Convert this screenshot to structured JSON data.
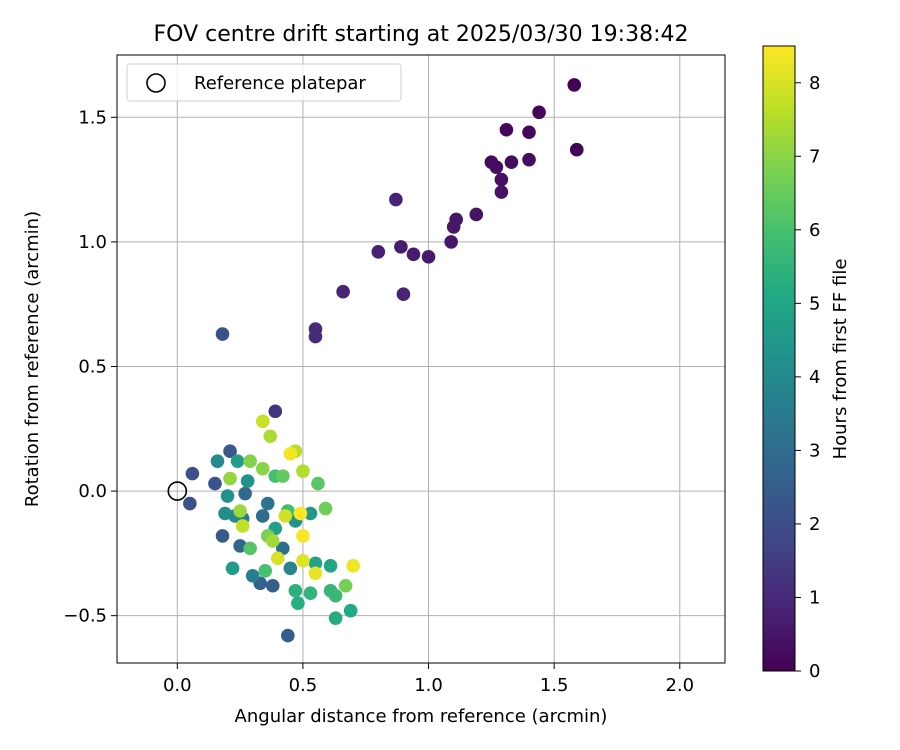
{
  "chart_data": {
    "type": "scatter",
    "title": "FOV centre drift starting at 2025/03/30 19:38:42",
    "xlabel": "Angular distance from reference (arcmin)",
    "ylabel": "Rotation from reference (arcmin)",
    "xlim": [
      -0.24,
      2.18
    ],
    "ylim": [
      -0.69,
      1.75
    ],
    "xticks": [
      0.0,
      0.5,
      1.0,
      1.5,
      2.0
    ],
    "xtick_labels": [
      "0.0",
      "0.5",
      "1.0",
      "1.5",
      "2.0"
    ],
    "yticks": [
      -0.5,
      0.0,
      0.5,
      1.0,
      1.5
    ],
    "ytick_labels": [
      "−0.5",
      "0.0",
      "0.5",
      "1.0",
      "1.5"
    ],
    "grid": true,
    "legend": {
      "position": "top-left",
      "entries": [
        "Reference platepar"
      ]
    },
    "reference_point": {
      "x": 0.0,
      "y": 0.0,
      "label": "Reference platepar"
    },
    "colorbar": {
      "label": "Hours from first FF file",
      "colormap": "viridis",
      "range": [
        0,
        8.5
      ],
      "ticks": [
        0,
        1,
        2,
        3,
        4,
        5,
        6,
        7,
        8
      ],
      "tick_labels": [
        "0",
        "1",
        "2",
        "3",
        "4",
        "5",
        "6",
        "7",
        "8"
      ]
    },
    "points": [
      {
        "x": 1.58,
        "y": 1.63,
        "hours": 0.05
      },
      {
        "x": 1.44,
        "y": 1.52,
        "hours": 0.1
      },
      {
        "x": 1.59,
        "y": 1.37,
        "hours": 0.1
      },
      {
        "x": 1.31,
        "y": 1.45,
        "hours": 0.15
      },
      {
        "x": 1.4,
        "y": 1.44,
        "hours": 0.2
      },
      {
        "x": 1.25,
        "y": 1.32,
        "hours": 0.25
      },
      {
        "x": 1.27,
        "y": 1.3,
        "hours": 0.25
      },
      {
        "x": 1.33,
        "y": 1.32,
        "hours": 0.3
      },
      {
        "x": 1.4,
        "y": 1.33,
        "hours": 0.3
      },
      {
        "x": 1.29,
        "y": 1.25,
        "hours": 0.35
      },
      {
        "x": 1.29,
        "y": 1.2,
        "hours": 0.4
      },
      {
        "x": 1.19,
        "y": 1.11,
        "hours": 0.45
      },
      {
        "x": 1.11,
        "y": 1.09,
        "hours": 0.5
      },
      {
        "x": 1.1,
        "y": 1.06,
        "hours": 0.5
      },
      {
        "x": 1.09,
        "y": 1.0,
        "hours": 0.55
      },
      {
        "x": 1.0,
        "y": 0.94,
        "hours": 0.6
      },
      {
        "x": 0.94,
        "y": 0.95,
        "hours": 0.65
      },
      {
        "x": 0.89,
        "y": 0.98,
        "hours": 0.7
      },
      {
        "x": 0.8,
        "y": 0.96,
        "hours": 0.75
      },
      {
        "x": 0.87,
        "y": 1.17,
        "hours": 0.8
      },
      {
        "x": 0.9,
        "y": 0.79,
        "hours": 0.85
      },
      {
        "x": 0.66,
        "y": 0.8,
        "hours": 0.9
      },
      {
        "x": 0.55,
        "y": 0.65,
        "hours": 1.0
      },
      {
        "x": 0.55,
        "y": 0.62,
        "hours": 1.05
      },
      {
        "x": 0.39,
        "y": 0.32,
        "hours": 1.3
      },
      {
        "x": 0.18,
        "y": 0.63,
        "hours": 2.1
      },
      {
        "x": 0.06,
        "y": 0.07,
        "hours": 2.0
      },
      {
        "x": 0.05,
        "y": -0.05,
        "hours": 2.1
      },
      {
        "x": 0.15,
        "y": 0.03,
        "hours": 2.2
      },
      {
        "x": 0.21,
        "y": 0.16,
        "hours": 2.3
      },
      {
        "x": 0.18,
        "y": -0.18,
        "hours": 2.4
      },
      {
        "x": 0.44,
        "y": -0.58,
        "hours": 2.5
      },
      {
        "x": 0.38,
        "y": -0.38,
        "hours": 2.6
      },
      {
        "x": 0.33,
        "y": -0.37,
        "hours": 2.7
      },
      {
        "x": 0.25,
        "y": -0.22,
        "hours": 2.8
      },
      {
        "x": 0.27,
        "y": -0.01,
        "hours": 2.9
      },
      {
        "x": 0.34,
        "y": -0.1,
        "hours": 3.0
      },
      {
        "x": 0.42,
        "y": -0.23,
        "hours": 3.1
      },
      {
        "x": 0.36,
        "y": -0.05,
        "hours": 3.2
      },
      {
        "x": 0.26,
        "y": -0.11,
        "hours": 3.4
      },
      {
        "x": 0.3,
        "y": -0.34,
        "hours": 3.6
      },
      {
        "x": 0.45,
        "y": -0.31,
        "hours": 3.8
      },
      {
        "x": 0.23,
        "y": -0.1,
        "hours": 3.9
      },
      {
        "x": 0.16,
        "y": 0.12,
        "hours": 4.0
      },
      {
        "x": 0.19,
        "y": -0.09,
        "hours": 4.1
      },
      {
        "x": 0.2,
        "y": -0.02,
        "hours": 4.2
      },
      {
        "x": 0.28,
        "y": 0.04,
        "hours": 4.3
      },
      {
        "x": 0.47,
        "y": -0.12,
        "hours": 4.4
      },
      {
        "x": 0.53,
        "y": -0.09,
        "hours": 4.5
      },
      {
        "x": 0.22,
        "y": -0.31,
        "hours": 4.6
      },
      {
        "x": 0.24,
        "y": 0.12,
        "hours": 4.7
      },
      {
        "x": 0.39,
        "y": -0.15,
        "hours": 4.8
      },
      {
        "x": 0.55,
        "y": -0.29,
        "hours": 4.9
      },
      {
        "x": 0.61,
        "y": -0.3,
        "hours": 5.0
      },
      {
        "x": 0.69,
        "y": -0.48,
        "hours": 5.1
      },
      {
        "x": 0.63,
        "y": -0.51,
        "hours": 5.2
      },
      {
        "x": 0.48,
        "y": -0.45,
        "hours": 5.3
      },
      {
        "x": 0.47,
        "y": -0.4,
        "hours": 5.4
      },
      {
        "x": 0.53,
        "y": -0.41,
        "hours": 5.5
      },
      {
        "x": 0.61,
        "y": -0.4,
        "hours": 5.6
      },
      {
        "x": 0.63,
        "y": -0.42,
        "hours": 5.7
      },
      {
        "x": 0.44,
        "y": -0.08,
        "hours": 5.8
      },
      {
        "x": 0.39,
        "y": 0.06,
        "hours": 5.9
      },
      {
        "x": 0.35,
        "y": -0.32,
        "hours": 6.0
      },
      {
        "x": 0.29,
        "y": -0.23,
        "hours": 6.2
      },
      {
        "x": 0.56,
        "y": 0.03,
        "hours": 6.3
      },
      {
        "x": 0.42,
        "y": 0.06,
        "hours": 6.4
      },
      {
        "x": 0.59,
        "y": -0.07,
        "hours": 6.6
      },
      {
        "x": 0.67,
        "y": -0.38,
        "hours": 6.7
      },
      {
        "x": 0.36,
        "y": -0.18,
        "hours": 6.8
      },
      {
        "x": 0.29,
        "y": 0.12,
        "hours": 6.9
      },
      {
        "x": 0.34,
        "y": 0.09,
        "hours": 7.0
      },
      {
        "x": 0.21,
        "y": 0.05,
        "hours": 7.1
      },
      {
        "x": 0.25,
        "y": -0.08,
        "hours": 7.2
      },
      {
        "x": 0.38,
        "y": -0.2,
        "hours": 7.3
      },
      {
        "x": 0.37,
        "y": 0.22,
        "hours": 7.4
      },
      {
        "x": 0.5,
        "y": 0.08,
        "hours": 7.5
      },
      {
        "x": 0.47,
        "y": 0.16,
        "hours": 7.6
      },
      {
        "x": 0.26,
        "y": -0.14,
        "hours": 7.7
      },
      {
        "x": 0.34,
        "y": 0.28,
        "hours": 7.8
      },
      {
        "x": 0.43,
        "y": -0.1,
        "hours": 7.9
      },
      {
        "x": 0.4,
        "y": -0.27,
        "hours": 8.0
      },
      {
        "x": 0.5,
        "y": -0.28,
        "hours": 8.1
      },
      {
        "x": 0.55,
        "y": -0.33,
        "hours": 8.2
      },
      {
        "x": 0.7,
        "y": -0.3,
        "hours": 8.3
      },
      {
        "x": 0.45,
        "y": 0.15,
        "hours": 8.4
      },
      {
        "x": 0.5,
        "y": -0.18,
        "hours": 8.45
      },
      {
        "x": 0.49,
        "y": -0.09,
        "hours": 8.5
      }
    ]
  }
}
